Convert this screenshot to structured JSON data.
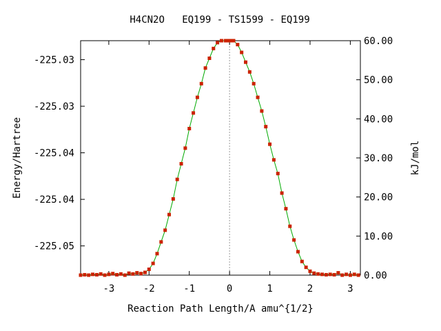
{
  "chart_data": {
    "type": "line",
    "title": "H4CN2O   EQ199 - TS1599 - EQ199",
    "xlabel": "Reaction Path Length/A amu^{1/2}",
    "ylabel": "Energy/Hartree",
    "y2label": "kJ/mol",
    "xlim": [
      -3.7,
      3.25
    ],
    "ylim": [
      -225.05414,
      -225.02896
    ],
    "y2lim": [
      0.0,
      60.0
    ],
    "x_ticks": [
      -3,
      -2,
      -1,
      0,
      1,
      2,
      3
    ],
    "x_tick_labels": [
      "-3",
      "-2",
      "-1",
      "0",
      "1",
      "2",
      "3"
    ],
    "y_ticks": [
      -225.031,
      -225.036,
      -225.041,
      -225.046,
      -225.051
    ],
    "y_tick_labels": [
      "-225.03",
      "-225.03",
      "-225.04",
      "-225.04",
      "-225.05"
    ],
    "y2_ticks": [
      0,
      10,
      20,
      30,
      40,
      50,
      60
    ],
    "y2_tick_labels": [
      "0.00",
      "10.00",
      "20.00",
      "30.00",
      "40.00",
      "50.00",
      "60.00"
    ],
    "ts_marker_x": 0.0,
    "grid": false,
    "line_color": "#00aa00",
    "marker_color": "#cc2200",
    "ts_line_color": "#999999",
    "series": [
      {
        "x": [
          -3.7,
          -3.6,
          -3.5,
          -3.4,
          -3.3,
          -3.2,
          -3.1,
          -3.0,
          -2.9,
          -2.8,
          -2.7,
          -2.6,
          -2.5,
          -2.4,
          -2.3,
          -2.2,
          -2.1,
          -2.0,
          -1.9,
          -1.8,
          -1.7,
          -1.6,
          -1.5,
          -1.4,
          -1.3,
          -1.2,
          -1.1,
          -1.0,
          -0.9,
          -0.8,
          -0.7,
          -0.6,
          -0.5,
          -0.4,
          -0.3,
          -0.2,
          -0.1,
          -0.05,
          0.0,
          0.05,
          0.1,
          0.2,
          0.3,
          0.4,
          0.5,
          0.6,
          0.7,
          0.8,
          0.9,
          1.0,
          1.1,
          1.2,
          1.3,
          1.4,
          1.5,
          1.6,
          1.7,
          1.8,
          1.9,
          2.0,
          2.1,
          2.2,
          2.3,
          2.4,
          2.5,
          2.6,
          2.7,
          2.8,
          2.9,
          3.0,
          3.1,
          3.2
        ],
        "y": [
          0.0,
          0.1,
          0.0,
          0.2,
          0.1,
          0.3,
          0.0,
          0.2,
          0.4,
          0.1,
          0.3,
          0.0,
          0.5,
          0.3,
          0.6,
          0.4,
          0.7,
          1.5,
          3.0,
          5.5,
          8.5,
          11.5,
          15.5,
          19.5,
          24.5,
          28.5,
          32.5,
          37.5,
          41.5,
          45.5,
          49.0,
          53.0,
          55.5,
          58.0,
          59.5,
          60.0,
          60.0,
          60.0,
          60.0,
          60.0,
          60.0,
          59.0,
          57.0,
          54.5,
          52.0,
          49.0,
          45.5,
          42.0,
          38.0,
          33.5,
          29.5,
          26.0,
          21.0,
          17.0,
          12.5,
          9.0,
          6.0,
          3.5,
          2.0,
          1.0,
          0.5,
          0.3,
          0.2,
          0.1,
          0.2,
          0.1,
          0.6,
          0.0,
          0.2,
          0.0,
          0.2,
          0.0
        ]
      }
    ]
  }
}
